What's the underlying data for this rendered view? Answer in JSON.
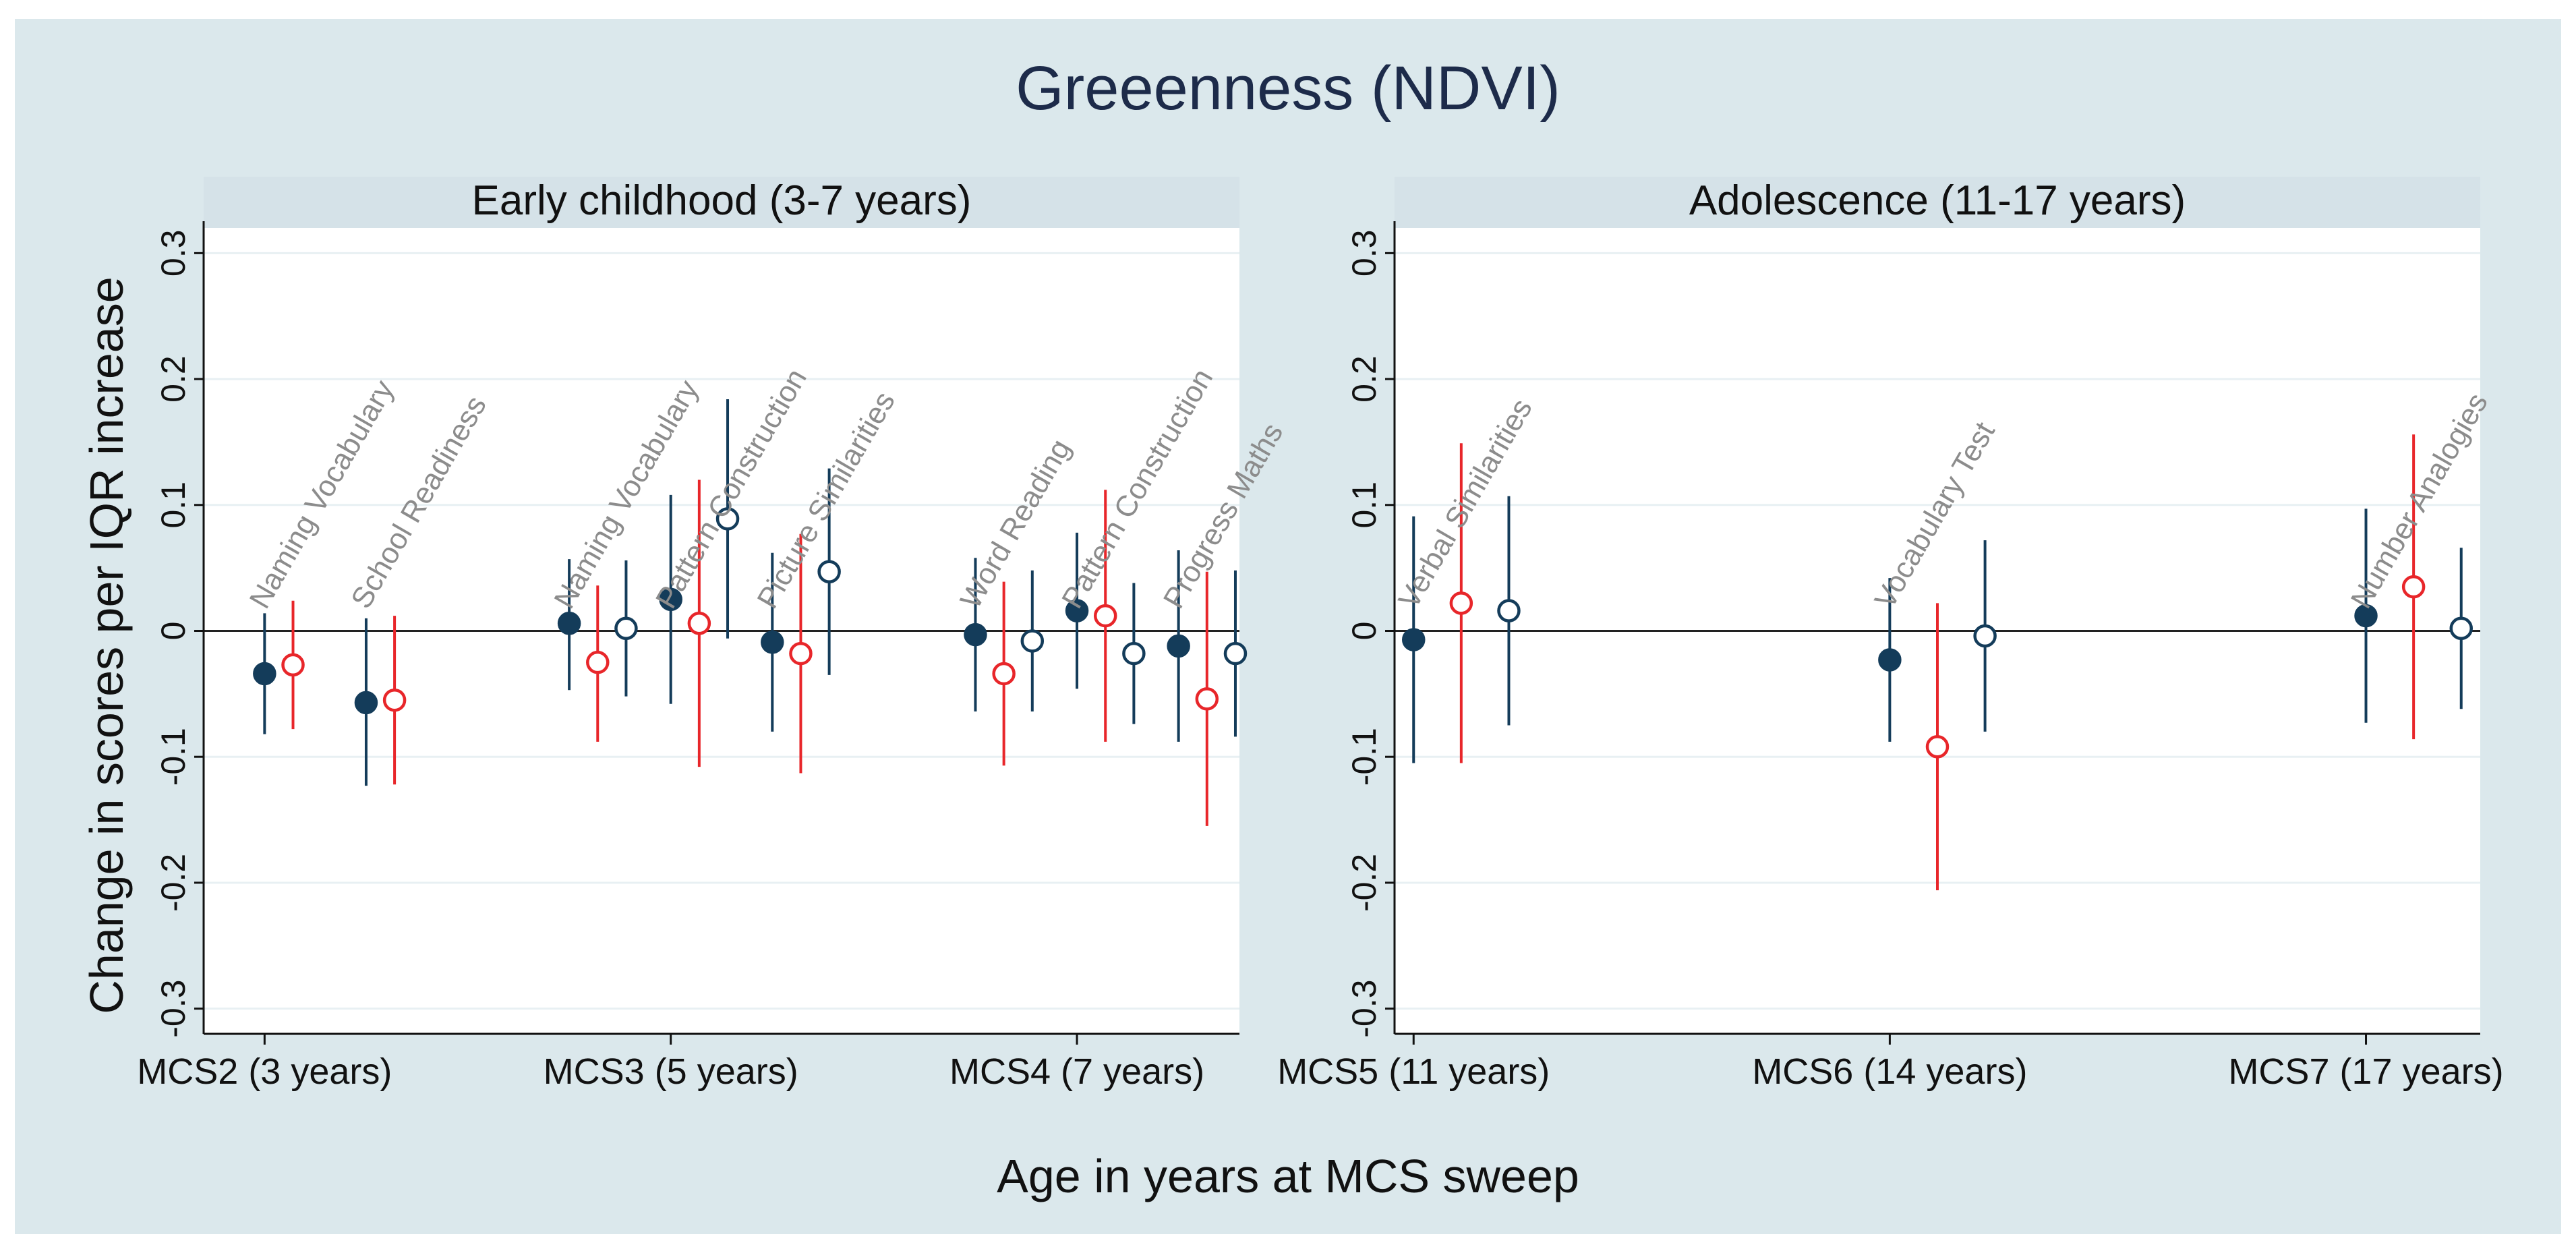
{
  "colors": {
    "outer_bg": "#dbe8ec",
    "plot_bg": "#ffffff",
    "strip_bg": "#d5e2e8",
    "grid": "#e8f0f3",
    "axis": "#111111",
    "navy": "#143c5a",
    "red": "#e8262a",
    "label_gray": "#8c8c8c"
  },
  "chart_data": {
    "type": "scatter",
    "title": "Greeenness (NDVI)",
    "xlabel": "Age in years at MCS sweep",
    "ylabel": "Change in scores per IQR increase",
    "ylim": [
      -0.32,
      0.32
    ],
    "yticks": [
      -0.3,
      -0.2,
      -0.1,
      0,
      0.1,
      0.2,
      0.3
    ],
    "ytick_labels": [
      "-0.3",
      "-0.2",
      "-0.1",
      "0",
      "0.1",
      "0.2",
      "0.3"
    ],
    "legend": "none",
    "series_styles": [
      {
        "key": "A",
        "marker": "filled-circle",
        "color": "navy"
      },
      {
        "key": "B",
        "marker": "hollow-circle",
        "color": "red"
      },
      {
        "key": "C",
        "marker": "hollow-circle",
        "color": "navy"
      }
    ],
    "panels": [
      {
        "title": "Early childhood (3-7 years)",
        "xlim": [
          -0.15,
          2.4
        ],
        "xticks": [
          {
            "x": 0,
            "label": "MCS2 (3 years)"
          },
          {
            "x": 1,
            "label": "MCS3 (5 years)"
          },
          {
            "x": 2,
            "label": "MCS4 (7 years)"
          }
        ],
        "tests": [
          {
            "name": "Naming Vocabulary",
            "sweep": "MCS2 (3 years)",
            "x": 0.0,
            "points": [
              {
                "series": "A",
                "x": 0.0,
                "est": -0.034,
                "lo": -0.082,
                "hi": 0.014
              },
              {
                "series": "B",
                "x": 0.07,
                "est": -0.027,
                "lo": -0.078,
                "hi": 0.024
              }
            ]
          },
          {
            "name": "School Readiness",
            "sweep": "MCS2 (3 years)",
            "x": 0.25,
            "points": [
              {
                "series": "A",
                "x": 0.25,
                "est": -0.057,
                "lo": -0.123,
                "hi": 0.01
              },
              {
                "series": "B",
                "x": 0.32,
                "est": -0.055,
                "lo": -0.122,
                "hi": 0.012
              }
            ]
          },
          {
            "name": "Naming Vocabulary",
            "sweep": "MCS3 (5 years)",
            "x": 0.75,
            "points": [
              {
                "series": "A",
                "x": 0.75,
                "est": 0.006,
                "lo": -0.047,
                "hi": 0.057
              },
              {
                "series": "B",
                "x": 0.82,
                "est": -0.025,
                "lo": -0.088,
                "hi": 0.036
              },
              {
                "series": "C",
                "x": 0.89,
                "est": 0.002,
                "lo": -0.052,
                "hi": 0.056
              }
            ]
          },
          {
            "name": "Pattern Construction",
            "sweep": "MCS3 (5 years)",
            "x": 1.0,
            "points": [
              {
                "series": "A",
                "x": 1.0,
                "est": 0.025,
                "lo": -0.058,
                "hi": 0.108
              },
              {
                "series": "B",
                "x": 1.07,
                "est": 0.006,
                "lo": -0.108,
                "hi": 0.12
              },
              {
                "series": "C",
                "x": 1.14,
                "est": 0.089,
                "lo": -0.006,
                "hi": 0.184
              }
            ]
          },
          {
            "name": "Picture Similarities",
            "sweep": "MCS3 (5 years)",
            "x": 1.25,
            "points": [
              {
                "series": "A",
                "x": 1.25,
                "est": -0.009,
                "lo": -0.08,
                "hi": 0.062
              },
              {
                "series": "B",
                "x": 1.32,
                "est": -0.018,
                "lo": -0.113,
                "hi": 0.077
              },
              {
                "series": "C",
                "x": 1.39,
                "est": 0.047,
                "lo": -0.035,
                "hi": 0.129
              }
            ]
          },
          {
            "name": "Word Reading",
            "sweep": "MCS4 (7 years)",
            "x": 1.75,
            "points": [
              {
                "series": "A",
                "x": 1.75,
                "est": -0.003,
                "lo": -0.064,
                "hi": 0.058
              },
              {
                "series": "B",
                "x": 1.82,
                "est": -0.034,
                "lo": -0.107,
                "hi": 0.039
              },
              {
                "series": "C",
                "x": 1.89,
                "est": -0.008,
                "lo": -0.064,
                "hi": 0.048
              }
            ]
          },
          {
            "name": "Pattern Construction",
            "sweep": "MCS4 (7 years)",
            "x": 2.0,
            "points": [
              {
                "series": "A",
                "x": 2.0,
                "est": 0.016,
                "lo": -0.046,
                "hi": 0.078
              },
              {
                "series": "B",
                "x": 2.07,
                "est": 0.012,
                "lo": -0.088,
                "hi": 0.112
              },
              {
                "series": "C",
                "x": 2.14,
                "est": -0.018,
                "lo": -0.074,
                "hi": 0.038
              }
            ]
          },
          {
            "name": "Progress Maths",
            "sweep": "MCS4 (7 years)",
            "x": 2.25,
            "points": [
              {
                "series": "A",
                "x": 2.25,
                "est": -0.012,
                "lo": -0.088,
                "hi": 0.064
              },
              {
                "series": "B",
                "x": 2.32,
                "est": -0.054,
                "lo": -0.155,
                "hi": 0.047
              },
              {
                "series": "C",
                "x": 2.39,
                "est": -0.018,
                "lo": -0.084,
                "hi": 0.048
              }
            ]
          }
        ]
      },
      {
        "title": "Adolescence (11-17 years)",
        "xlim": [
          -0.04,
          2.24
        ],
        "xticks": [
          {
            "x": 0,
            "label": "MCS5 (11 years)"
          },
          {
            "x": 1,
            "label": "MCS6 (14 years)"
          },
          {
            "x": 2,
            "label": "MCS7 (17 years)"
          }
        ],
        "tests": [
          {
            "name": "Verbal Similarities",
            "sweep": "MCS5 (11 years)",
            "x": 0.0,
            "points": [
              {
                "series": "A",
                "x": 0.0,
                "est": -0.007,
                "lo": -0.105,
                "hi": 0.091
              },
              {
                "series": "B",
                "x": 0.1,
                "est": 0.022,
                "lo": -0.105,
                "hi": 0.149
              },
              {
                "series": "C",
                "x": 0.2,
                "est": 0.016,
                "lo": -0.075,
                "hi": 0.107
              }
            ]
          },
          {
            "name": "Vocabulary Test",
            "sweep": "MCS6 (14 years)",
            "x": 1.0,
            "points": [
              {
                "series": "A",
                "x": 1.0,
                "est": -0.023,
                "lo": -0.088,
                "hi": 0.042
              },
              {
                "series": "B",
                "x": 1.1,
                "est": -0.092,
                "lo": -0.206,
                "hi": 0.022
              },
              {
                "series": "C",
                "x": 1.2,
                "est": -0.004,
                "lo": -0.08,
                "hi": 0.072
              }
            ]
          },
          {
            "name": "Number Analogies",
            "sweep": "MCS7 (17 years)",
            "x": 2.0,
            "points": [
              {
                "series": "A",
                "x": 2.0,
                "est": 0.012,
                "lo": -0.073,
                "hi": 0.097
              },
              {
                "series": "B",
                "x": 2.1,
                "est": 0.035,
                "lo": -0.086,
                "hi": 0.156
              },
              {
                "series": "C",
                "x": 2.2,
                "est": 0.002,
                "lo": -0.062,
                "hi": 0.066
              }
            ]
          }
        ]
      }
    ]
  }
}
